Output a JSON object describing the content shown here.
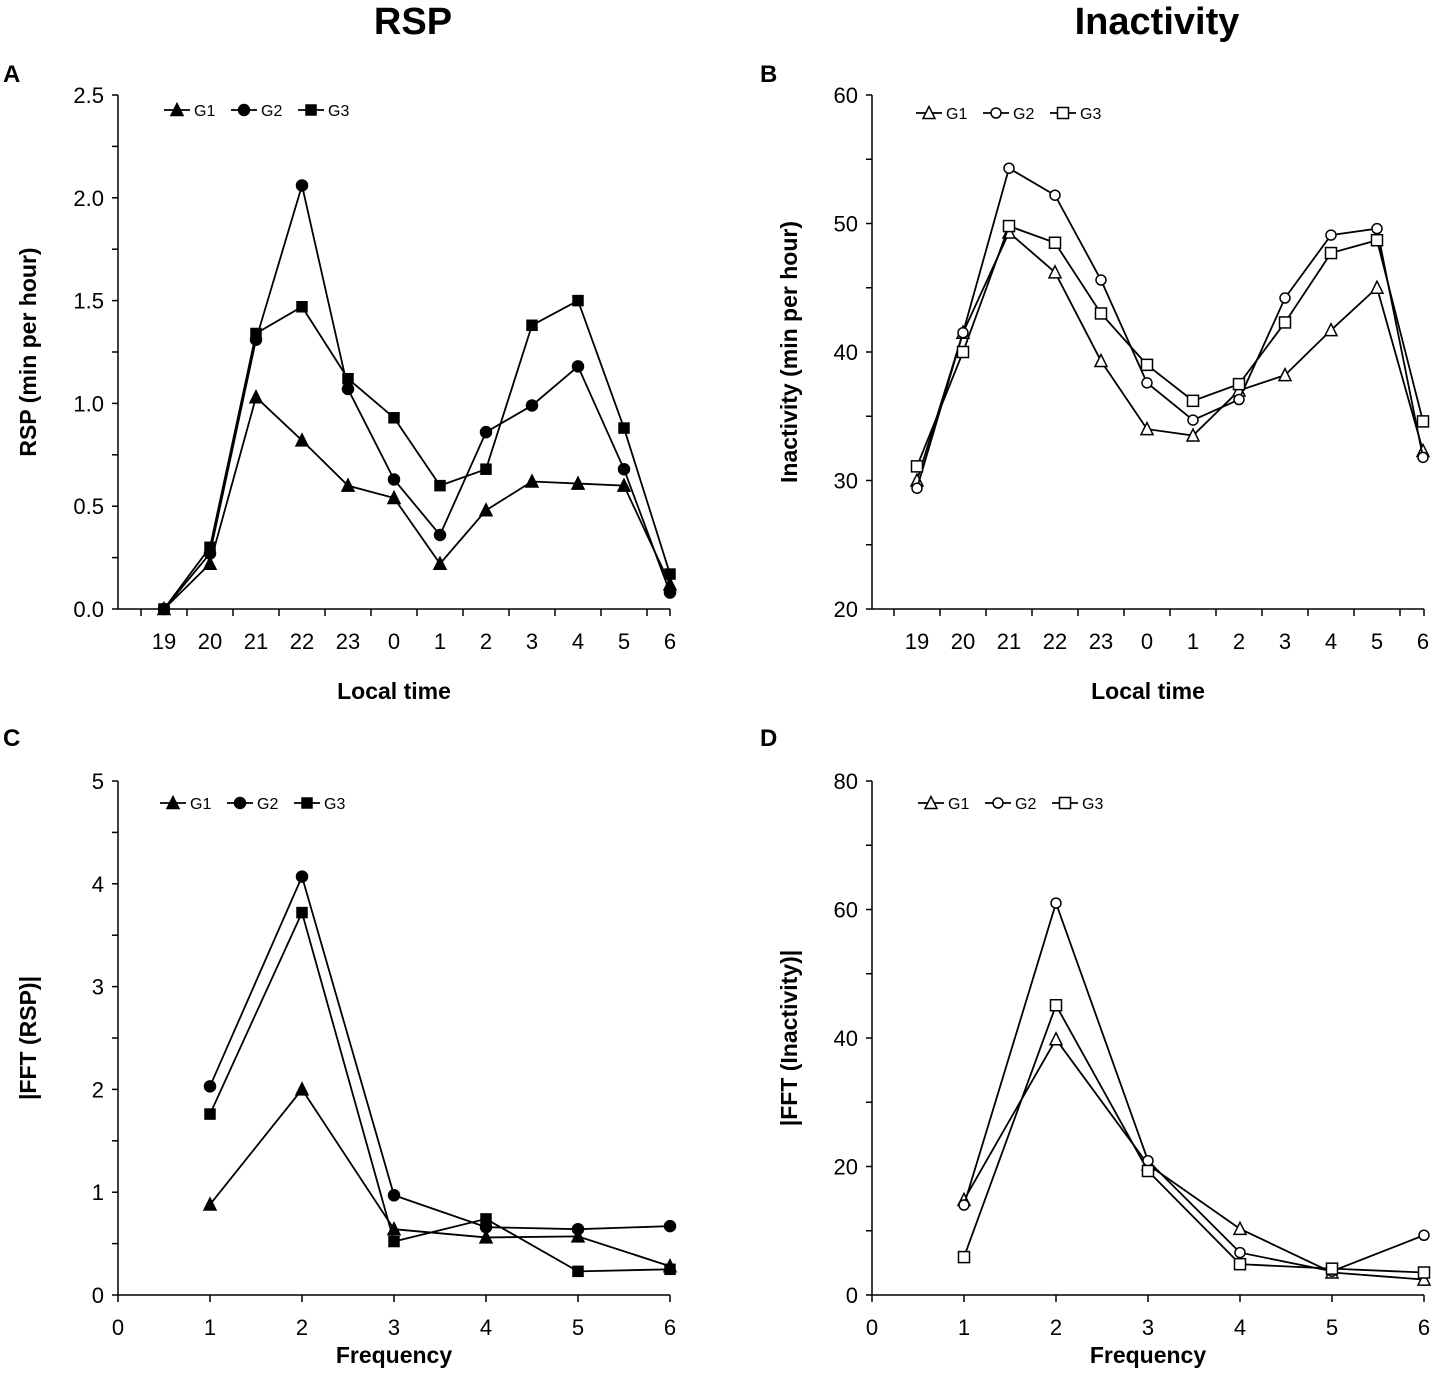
{
  "figure": {
    "left_title": "RSP",
    "right_title": "Inactivity"
  },
  "chart_data": [
    {
      "panel": "A",
      "type": "line",
      "title": "RSP",
      "xlabel": "Local time",
      "ylabel": "RSP (min per hour)",
      "categories": [
        "19",
        "20",
        "21",
        "22",
        "23",
        "0",
        "1",
        "2",
        "3",
        "4",
        "5",
        "6"
      ],
      "ylim": [
        0,
        2.5
      ],
      "yticks": [
        "0.0",
        "0.5",
        "1.0",
        "1.5",
        "2.0",
        "2.5"
      ],
      "marker_fill": "filled",
      "legend_position": "top-left",
      "series": [
        {
          "name": "G1",
          "marker": "triangle",
          "values": [
            0.0,
            0.22,
            1.03,
            0.82,
            0.6,
            0.54,
            0.22,
            0.48,
            0.62,
            0.61,
            0.6,
            0.12
          ]
        },
        {
          "name": "G2",
          "marker": "circle",
          "values": [
            0.0,
            0.27,
            1.31,
            2.06,
            1.07,
            0.63,
            0.36,
            0.86,
            0.99,
            1.18,
            0.68,
            0.08
          ]
        },
        {
          "name": "G3",
          "marker": "square",
          "values": [
            0.0,
            0.3,
            1.34,
            1.47,
            1.12,
            0.93,
            0.6,
            0.68,
            1.38,
            1.5,
            0.88,
            0.17
          ]
        }
      ]
    },
    {
      "panel": "B",
      "type": "line",
      "title": "Inactivity",
      "xlabel": "Local time",
      "ylabel": "Inactivity (min per hour)",
      "categories": [
        "19",
        "20",
        "21",
        "22",
        "23",
        "0",
        "1",
        "2",
        "3",
        "4",
        "5",
        "6"
      ],
      "ylim": [
        20,
        60
      ],
      "yticks": [
        "20",
        "30",
        "40",
        "50",
        "60"
      ],
      "marker_fill": "open",
      "legend_position": "top-left",
      "series": [
        {
          "name": "G1",
          "marker": "triangle",
          "values": [
            30.0,
            41.5,
            49.3,
            46.2,
            39.3,
            34.0,
            33.5,
            37.0,
            38.2,
            41.7,
            45.0,
            32.3
          ]
        },
        {
          "name": "G2",
          "marker": "circle",
          "values": [
            29.4,
            41.5,
            54.3,
            52.2,
            45.6,
            37.6,
            34.7,
            36.3,
            44.2,
            49.1,
            49.6,
            31.8
          ]
        },
        {
          "name": "G3",
          "marker": "square",
          "values": [
            31.1,
            40.0,
            49.8,
            48.5,
            43.0,
            39.0,
            36.2,
            37.5,
            42.3,
            47.7,
            48.7,
            34.6
          ]
        }
      ]
    },
    {
      "panel": "C",
      "type": "line",
      "xlabel": "Frequency",
      "ylabel": "|FFT (RSP)|",
      "x": [
        1,
        2,
        3,
        4,
        5,
        6
      ],
      "xlim": [
        0,
        6
      ],
      "xticks": [
        "0",
        "1",
        "2",
        "3",
        "4",
        "5",
        "6"
      ],
      "ylim": [
        0,
        5
      ],
      "yticks": [
        "0",
        "1",
        "2",
        "3",
        "4",
        "5"
      ],
      "marker_fill": "filled",
      "legend_position": "top-left",
      "series": [
        {
          "name": "G1",
          "marker": "triangle",
          "values": [
            0.88,
            2.0,
            0.64,
            0.56,
            0.57,
            0.28
          ]
        },
        {
          "name": "G2",
          "marker": "circle",
          "values": [
            2.03,
            4.07,
            0.97,
            0.66,
            0.64,
            0.67
          ]
        },
        {
          "name": "G3",
          "marker": "square",
          "values": [
            1.76,
            3.72,
            0.52,
            0.74,
            0.23,
            0.25
          ]
        }
      ]
    },
    {
      "panel": "D",
      "type": "line",
      "xlabel": "Frequency",
      "ylabel": "|FFT (Inactivity)|",
      "x": [
        1,
        2,
        3,
        4,
        5,
        6
      ],
      "xlim": [
        0,
        6
      ],
      "xticks": [
        "0",
        "1",
        "2",
        "3",
        "4",
        "5",
        "6"
      ],
      "ylim": [
        0,
        80
      ],
      "yticks": [
        "0",
        "20",
        "40",
        "60",
        "80"
      ],
      "marker_fill": "open",
      "legend_position": "top-left",
      "series": [
        {
          "name": "G1",
          "marker": "triangle",
          "values": [
            14.8,
            39.8,
            20.3,
            10.3,
            3.5,
            2.4
          ]
        },
        {
          "name": "G2",
          "marker": "circle",
          "values": [
            14.0,
            61.0,
            20.9,
            6.6,
            3.7,
            9.3
          ]
        },
        {
          "name": "G3",
          "marker": "square",
          "values": [
            5.9,
            45.1,
            19.3,
            4.8,
            4.1,
            3.5
          ]
        }
      ]
    }
  ]
}
